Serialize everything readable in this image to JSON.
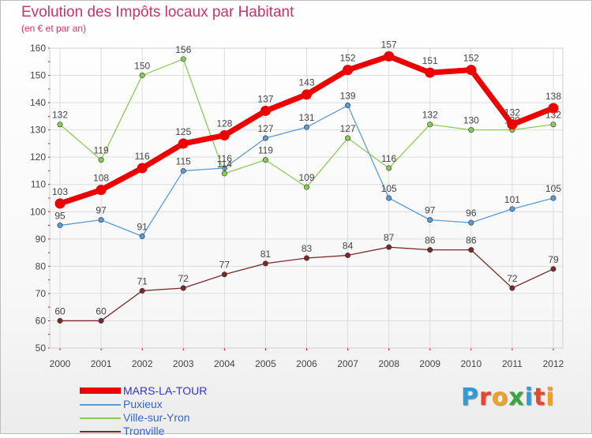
{
  "header": {
    "title": "Evolution des Impôts locaux par Habitant",
    "subtitle": "(en € et par an)"
  },
  "logo": {
    "text": "Proxiti",
    "letter_colors": [
      "#2f9bd8",
      "#e8462a",
      "#f0a020",
      "#3aa53a",
      "#2f9bd8",
      "#e8462a",
      "#f0a020"
    ]
  },
  "colors": {
    "grid": "#dcdcdc",
    "axis_tick": "#cc0000"
  },
  "chart_data": {
    "type": "line",
    "title": "Evolution des Impôts locaux par Habitant",
    "subtitle": "(en € et par an)",
    "x": [
      "2000",
      "2001",
      "2002",
      "2003",
      "2004",
      "2005",
      "2006",
      "2007",
      "2008",
      "2009",
      "2010",
      "2011",
      "2012"
    ],
    "ylim": [
      50,
      160
    ],
    "yticks": [
      50,
      60,
      70,
      80,
      90,
      100,
      110,
      120,
      130,
      140,
      150,
      160
    ],
    "grid": true,
    "legend_position": "bottom-left",
    "series": [
      {
        "name": "MARS-LA-TOUR",
        "color": "#ee0000",
        "legend_color": "#3333cc",
        "bold": true,
        "values": [
          103,
          108,
          116,
          125,
          128,
          137,
          143,
          152,
          157,
          151,
          152,
          132,
          138
        ]
      },
      {
        "name": "Puxieux",
        "color": "#5b9bd5",
        "legend_color": "#3366cc",
        "bold": false,
        "values": [
          95,
          97,
          91,
          115,
          116,
          127,
          131,
          139,
          105,
          97,
          96,
          101,
          105
        ]
      },
      {
        "name": "Ville-sur-Yron",
        "color": "#88cc55",
        "legend_color": "#3366cc",
        "bold": false,
        "values": [
          132,
          119,
          150,
          156,
          114,
          119,
          109,
          127,
          116,
          132,
          130,
          130,
          132
        ]
      },
      {
        "name": "Tronville",
        "color": "#7a2a2a",
        "legend_color": "#3366cc",
        "bold": false,
        "values": [
          60,
          60,
          71,
          72,
          77,
          81,
          83,
          84,
          87,
          86,
          86,
          72,
          79
        ]
      }
    ]
  }
}
